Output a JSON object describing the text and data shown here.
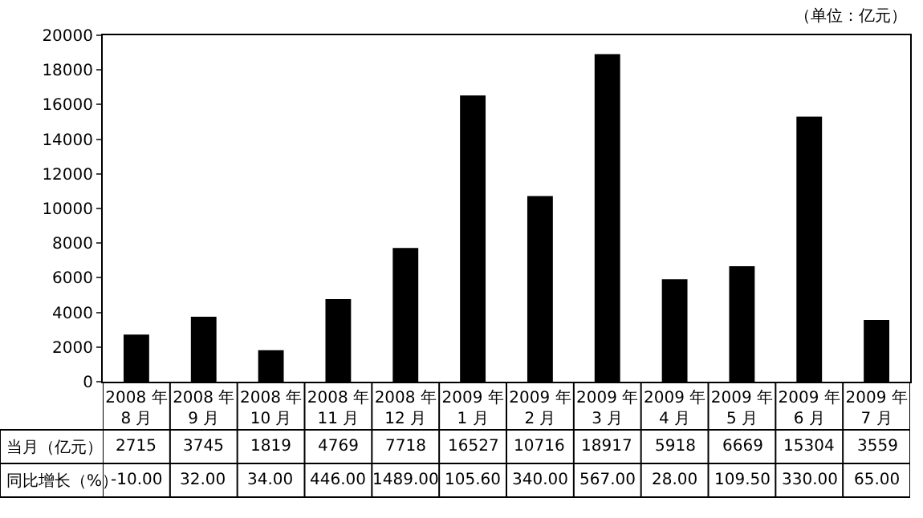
{
  "chart_data": {
    "type": "bar",
    "annotations": [
      "（单位：亿元）"
    ],
    "categories": [
      "2008 年\n8 月",
      "2008 年\n9 月",
      "2008 年\n10 月",
      "2008 年\n11 月",
      "2008 年\n12 月",
      "2009 年\n1 月",
      "2009 年\n2 月",
      "2009 年\n3 月",
      "2009 年\n4 月",
      "2009 年\n5 月",
      "2009 年\n6 月",
      "2009 年\n7 月"
    ],
    "series": [
      {
        "name": "当月（亿元）",
        "color": "#000000",
        "values": [
          2715,
          3745,
          1819,
          4769,
          7718,
          16527,
          10716,
          18917,
          5918,
          6669,
          15304,
          3559
        ]
      },
      {
        "name": "同比增长（%）",
        "type": "other",
        "values": [
          null,
          null,
          null,
          null,
          null,
          null,
          null,
          null,
          null,
          null,
          null,
          null
        ],
        "value_labels": [
          "-10.00",
          "32.00",
          "34.00",
          "446.00",
          "1489.00",
          "105.60",
          "340.00",
          "567.00",
          "28.00",
          "109.50",
          "330.00",
          "65.00"
        ]
      }
    ],
    "data_labels": true,
    "ylim": [
      0,
      20000
    ],
    "yticks": [
      0,
      2000,
      4000,
      6000,
      8000,
      10000,
      12000,
      14000,
      16000,
      18000,
      20000
    ],
    "grid": false,
    "legend": false
  }
}
